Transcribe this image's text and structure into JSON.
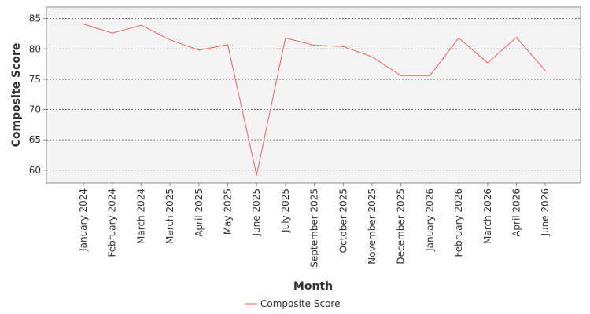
{
  "chart_data": {
    "type": "line",
    "title": "",
    "xlabel": "Month",
    "ylabel": "Composite Score",
    "categories": [
      "January 2024",
      "February 2024",
      "March 2024",
      "March 2025",
      "April 2025",
      "May 2025",
      "June 2025",
      "July 2025",
      "September 2025",
      "October 2025",
      "November 2025",
      "December 2025",
      "January 2026",
      "February 2026",
      "March 2026",
      "April 2026",
      "June 2026"
    ],
    "series": [
      {
        "name": "Composite Score",
        "color": "#f0615f",
        "values": [
          84.1,
          82.6,
          83.9,
          81.5,
          79.8,
          80.7,
          59.2,
          81.8,
          80.6,
          80.4,
          78.7,
          75.6,
          75.6,
          81.8,
          77.7,
          81.9,
          76.4
        ]
      }
    ],
    "yticks": [
      60,
      65,
      70,
      75,
      80,
      85
    ],
    "ylim": [
      57.9,
      86.9
    ],
    "grid": "horizontal-dashed",
    "legend": "bottom-center",
    "plot_background": "#f4f4f4"
  }
}
